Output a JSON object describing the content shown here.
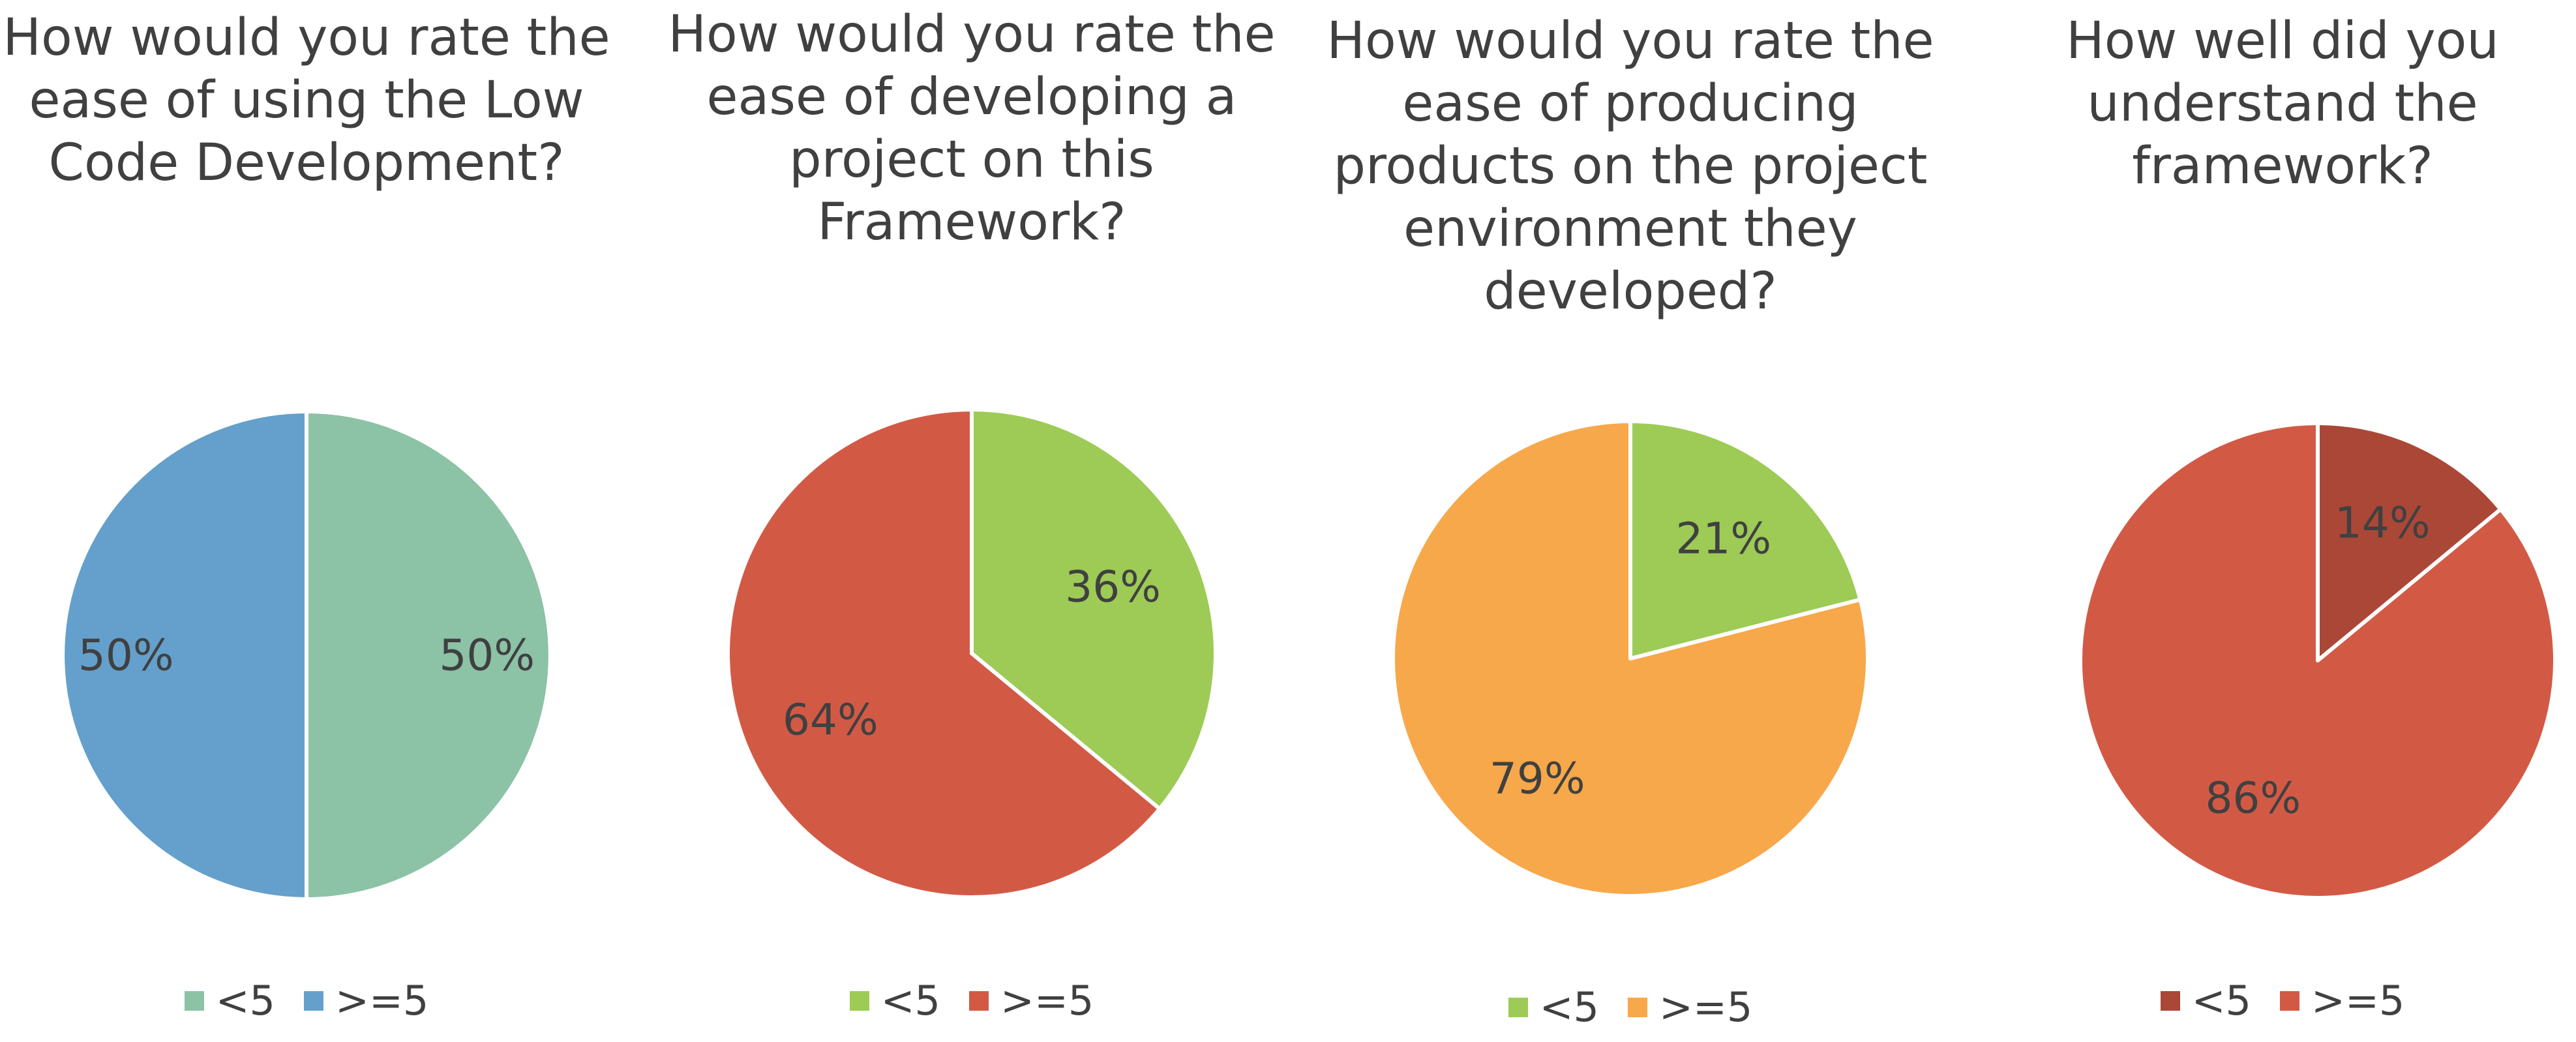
{
  "chart_data": [
    {
      "type": "pie",
      "title": "How would you rate the ease of using the Low Code Development?",
      "title_lines": [
        "How would you rate the",
        "ease of using the Low",
        "Code Development?"
      ],
      "series": [
        {
          "name": "<5",
          "value": 50,
          "label": "50%",
          "color": "#8cc2a6"
        },
        {
          "name": ">=5",
          "value": 50,
          "label": "50%",
          "color": "#64a0cb"
        }
      ],
      "legend": [
        "<5",
        ">=5"
      ],
      "legend_position": "bottom"
    },
    {
      "type": "pie",
      "title": "How would you rate the ease of developing a project on this Framework?",
      "title_lines": [
        "How would you rate the",
        "ease of developing a",
        "project on this",
        "Framework?"
      ],
      "series": [
        {
          "name": "<5",
          "value": 36,
          "label": "36%",
          "color": "#9dcb55"
        },
        {
          "name": ">=5",
          "value": 64,
          "label": "64%",
          "color": "#d25a45"
        }
      ],
      "legend": [
        "<5",
        ">=5"
      ],
      "legend_position": "bottom"
    },
    {
      "type": "pie",
      "title": "How would you rate the ease of producing products on the project environment they developed?",
      "title_lines": [
        "How would you rate the",
        "ease of producing",
        "products on the project",
        "environment they",
        "developed?"
      ],
      "series": [
        {
          "name": "<5",
          "value": 21,
          "label": "21%",
          "color": "#9dcb55"
        },
        {
          "name": ">=5",
          "value": 79,
          "label": "79%",
          "color": "#f7a84a"
        }
      ],
      "legend": [
        "<5",
        ">=5"
      ],
      "legend_position": "bottom"
    },
    {
      "type": "pie",
      "title": "How well did you understand the framework?",
      "title_lines": [
        "How well did you",
        "understand the",
        "framework?"
      ],
      "series": [
        {
          "name": "<5",
          "value": 14,
          "label": "14%",
          "color": "#ab4737"
        },
        {
          "name": ">=5",
          "value": 86,
          "label": "86%",
          "color": "#d25a45"
        }
      ],
      "legend": [
        "<5",
        ">=5"
      ],
      "legend_position": "bottom"
    }
  ]
}
